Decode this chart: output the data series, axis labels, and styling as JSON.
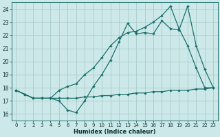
{
  "title": "",
  "xlabel": "Humidex (Indice chaleur)",
  "bg_color": "#cce8e8",
  "grid_color": "#aacccc",
  "line_color": "#1a6e6e",
  "xlim": [
    -0.5,
    23.5
  ],
  "ylim": [
    15.5,
    24.5
  ],
  "yticks": [
    16,
    17,
    18,
    19,
    20,
    21,
    22,
    23,
    24
  ],
  "xticks": [
    0,
    1,
    2,
    3,
    4,
    5,
    6,
    7,
    8,
    9,
    10,
    11,
    12,
    13,
    14,
    15,
    16,
    17,
    18,
    19,
    20,
    21,
    22,
    23
  ],
  "line1_x": [
    0,
    1,
    2,
    3,
    4,
    5,
    6,
    7,
    8,
    9,
    10,
    11,
    12,
    13,
    14,
    15,
    16,
    17,
    18,
    19,
    20,
    21,
    22,
    23
  ],
  "line1_y": [
    17.8,
    17.5,
    17.2,
    17.2,
    17.2,
    17.0,
    16.3,
    16.1,
    17.0,
    18.1,
    19.0,
    20.1,
    21.5,
    22.9,
    22.1,
    22.2,
    22.1,
    23.1,
    22.5,
    22.4,
    24.2,
    21.2,
    19.4,
    18.0
  ],
  "line2_x": [
    0,
    1,
    2,
    3,
    4,
    5,
    6,
    7,
    8,
    9,
    10,
    11,
    12,
    13,
    14,
    15,
    16,
    17,
    18,
    19,
    20,
    21,
    22,
    23
  ],
  "line2_y": [
    17.8,
    17.5,
    17.2,
    17.2,
    17.2,
    17.8,
    18.1,
    18.3,
    19.0,
    19.5,
    20.3,
    21.2,
    21.8,
    22.2,
    22.3,
    22.6,
    23.0,
    23.5,
    24.2,
    22.5,
    21.2,
    19.5,
    18.0,
    18.0
  ],
  "line3_x": [
    0,
    1,
    2,
    3,
    4,
    5,
    6,
    7,
    8,
    9,
    10,
    11,
    12,
    13,
    14,
    15,
    16,
    17,
    18,
    19,
    20,
    21,
    22,
    23
  ],
  "line3_y": [
    17.8,
    17.5,
    17.2,
    17.2,
    17.2,
    17.2,
    17.2,
    17.2,
    17.3,
    17.3,
    17.4,
    17.4,
    17.5,
    17.5,
    17.6,
    17.6,
    17.7,
    17.7,
    17.8,
    17.8,
    17.8,
    17.9,
    17.9,
    18.0
  ]
}
